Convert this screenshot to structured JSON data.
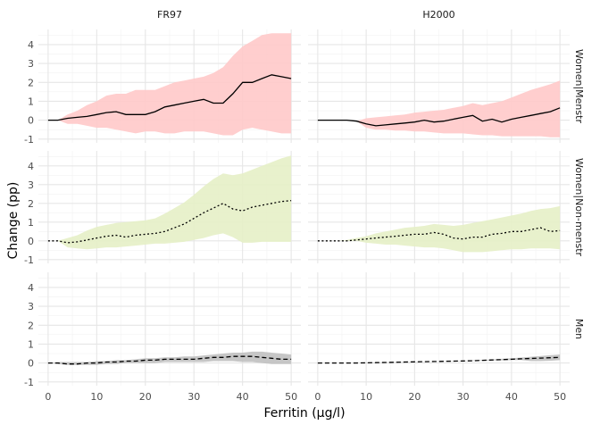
{
  "chart_data": {
    "type": "line",
    "xlabel": "Ferritin (µg/l)",
    "ylabel": "Change (pp)",
    "xlim": [
      -2,
      52
    ],
    "ylim": [
      -1.2,
      4.8
    ],
    "x_ticks": [
      0,
      10,
      20,
      30,
      40,
      50
    ],
    "y_ticks": [
      -1,
      0,
      1,
      2,
      3,
      4
    ],
    "grid": true,
    "columns": [
      "FR97",
      "H2000"
    ],
    "rows": [
      "Women|Menstr",
      "Women|Non-menstr",
      "Men"
    ],
    "row_styles": [
      {
        "dash": "none",
        "band_color": "#ffc9c9"
      },
      {
        "dash": "dotted",
        "band_color": "#e6efc6"
      },
      {
        "dash": "dashed",
        "band_color": "#c0c0c0"
      }
    ],
    "x": [
      0,
      2,
      4,
      6,
      8,
      10,
      12,
      14,
      16,
      18,
      20,
      22,
      24,
      26,
      28,
      30,
      32,
      34,
      36,
      38,
      40,
      42,
      44,
      46,
      48,
      50
    ],
    "panels": [
      {
        "column": "FR97",
        "row": "Women|Menstr",
        "x_start": 0,
        "y": [
          0,
          0,
          0.1,
          0.15,
          0.2,
          0.3,
          0.4,
          0.45,
          0.3,
          0.3,
          0.3,
          0.45,
          0.7,
          0.8,
          0.9,
          1.0,
          1.1,
          0.9,
          0.9,
          1.4,
          2.0,
          2.0,
          2.2,
          2.4,
          2.3,
          2.2
        ],
        "lower": [
          0,
          0,
          -0.2,
          -0.2,
          -0.3,
          -0.4,
          -0.4,
          -0.5,
          -0.6,
          -0.7,
          -0.6,
          -0.6,
          -0.7,
          -0.7,
          -0.6,
          -0.6,
          -0.6,
          -0.7,
          -0.8,
          -0.8,
          -0.5,
          -0.4,
          -0.5,
          -0.6,
          -0.7,
          -0.7
        ],
        "upper": [
          0,
          0,
          0.3,
          0.5,
          0.8,
          1.0,
          1.3,
          1.4,
          1.4,
          1.6,
          1.6,
          1.6,
          1.8,
          2.0,
          2.1,
          2.2,
          2.3,
          2.5,
          2.8,
          3.4,
          3.9,
          4.2,
          4.5,
          4.6,
          4.6,
          4.6
        ]
      },
      {
        "column": "H2000",
        "row": "Women|Menstr",
        "x_start": 0,
        "y": [
          0,
          0,
          0,
          0,
          -0.05,
          -0.2,
          -0.3,
          -0.25,
          -0.2,
          -0.15,
          -0.1,
          0,
          -0.1,
          -0.05,
          0.05,
          0.15,
          0.25,
          -0.05,
          0.05,
          -0.1,
          0.05,
          0.15,
          0.25,
          0.35,
          0.45,
          0.65
        ],
        "lower": [
          0,
          0,
          0,
          0,
          -0.05,
          -0.4,
          -0.5,
          -0.5,
          -0.55,
          -0.55,
          -0.6,
          -0.6,
          -0.65,
          -0.7,
          -0.7,
          -0.7,
          -0.75,
          -0.8,
          -0.8,
          -0.85,
          -0.85,
          -0.85,
          -0.85,
          -0.85,
          -0.9,
          -0.9
        ],
        "upper": [
          0,
          0,
          0,
          0,
          -0.05,
          0.1,
          0.15,
          0.2,
          0.25,
          0.3,
          0.4,
          0.45,
          0.5,
          0.55,
          0.65,
          0.75,
          0.9,
          0.8,
          0.9,
          1.0,
          1.2,
          1.4,
          1.6,
          1.75,
          1.9,
          2.1
        ]
      },
      {
        "column": "FR97",
        "row": "Women|Non-menstr",
        "x_start": 0,
        "y": [
          0,
          0,
          -0.1,
          -0.05,
          0.05,
          0.15,
          0.25,
          0.3,
          0.2,
          0.3,
          0.35,
          0.4,
          0.5,
          0.7,
          0.9,
          1.2,
          1.5,
          1.75,
          2.0,
          1.7,
          1.6,
          1.8,
          1.9,
          2.0,
          2.1,
          2.15
        ],
        "lower": [
          0,
          0,
          -0.35,
          -0.4,
          -0.45,
          -0.4,
          -0.35,
          -0.35,
          -0.3,
          -0.25,
          -0.2,
          -0.15,
          -0.15,
          -0.1,
          -0.05,
          0.05,
          0.15,
          0.3,
          0.4,
          0.2,
          -0.1,
          -0.1,
          -0.05,
          -0.05,
          -0.05,
          -0.05
        ],
        "upper": [
          0,
          0,
          0.15,
          0.3,
          0.55,
          0.75,
          0.85,
          0.95,
          1.0,
          1.05,
          1.1,
          1.2,
          1.45,
          1.75,
          2.05,
          2.45,
          2.9,
          3.3,
          3.6,
          3.5,
          3.6,
          3.8,
          4.0,
          4.2,
          4.4,
          4.55
        ]
      },
      {
        "column": "H2000",
        "row": "Women|Non-menstr",
        "x_start": 0,
        "y": [
          0,
          0,
          0,
          0,
          0.05,
          0.1,
          0.15,
          0.2,
          0.25,
          0.3,
          0.35,
          0.35,
          0.45,
          0.35,
          0.15,
          0.1,
          0.2,
          0.2,
          0.35,
          0.4,
          0.5,
          0.5,
          0.6,
          0.7,
          0.5,
          0.55
        ],
        "lower": [
          0,
          0,
          0,
          0,
          0,
          -0.1,
          -0.15,
          -0.2,
          -0.2,
          -0.25,
          -0.3,
          -0.35,
          -0.35,
          -0.4,
          -0.5,
          -0.6,
          -0.6,
          -0.6,
          -0.55,
          -0.5,
          -0.45,
          -0.45,
          -0.4,
          -0.4,
          -0.4,
          -0.45
        ],
        "upper": [
          0,
          0,
          0,
          0.05,
          0.15,
          0.25,
          0.4,
          0.5,
          0.6,
          0.7,
          0.75,
          0.8,
          0.9,
          0.85,
          0.8,
          0.85,
          0.95,
          1.05,
          1.15,
          1.25,
          1.35,
          1.45,
          1.6,
          1.7,
          1.75,
          1.85
        ]
      },
      {
        "column": "FR97",
        "row": "Men",
        "x_start": 0,
        "y": [
          0,
          0,
          -0.05,
          -0.05,
          0,
          0,
          0.05,
          0.05,
          0.1,
          0.1,
          0.15,
          0.15,
          0.2,
          0.2,
          0.2,
          0.2,
          0.25,
          0.3,
          0.3,
          0.35,
          0.35,
          0.35,
          0.3,
          0.25,
          0.2,
          0.2
        ],
        "lower": [
          0,
          -0.05,
          -0.1,
          -0.1,
          -0.1,
          -0.1,
          -0.05,
          -0.05,
          0,
          0,
          0,
          0,
          0.05,
          0.05,
          0.05,
          0.05,
          0.05,
          0.1,
          0.1,
          0.1,
          0.05,
          0.05,
          0,
          -0.05,
          -0.05,
          -0.05
        ],
        "upper": [
          0,
          0.05,
          0.05,
          0.05,
          0.05,
          0.1,
          0.1,
          0.15,
          0.15,
          0.2,
          0.25,
          0.25,
          0.3,
          0.3,
          0.35,
          0.35,
          0.4,
          0.45,
          0.5,
          0.55,
          0.55,
          0.6,
          0.6,
          0.55,
          0.5,
          0.45
        ]
      },
      {
        "column": "H2000",
        "row": "Men",
        "x_start": 0,
        "y": [
          0,
          0,
          0,
          0,
          0,
          0.01,
          0.02,
          0.03,
          0.04,
          0.05,
          0.06,
          0.07,
          0.08,
          0.09,
          0.1,
          0.11,
          0.12,
          0.14,
          0.16,
          0.18,
          0.2,
          0.22,
          0.24,
          0.26,
          0.28,
          0.3
        ],
        "lower": [
          0,
          0,
          0,
          0,
          0,
          0,
          0.01,
          0.02,
          0.03,
          0.04,
          0.05,
          0.06,
          0.07,
          0.08,
          0.09,
          0.1,
          0.11,
          0.12,
          0.13,
          0.14,
          0.15,
          0.16,
          0.1,
          0.1,
          0.12,
          0.15
        ],
        "upper": [
          0,
          0,
          0,
          0,
          0,
          0.02,
          0.03,
          0.04,
          0.05,
          0.06,
          0.07,
          0.08,
          0.09,
          0.1,
          0.11,
          0.12,
          0.14,
          0.16,
          0.19,
          0.22,
          0.25,
          0.29,
          0.33,
          0.37,
          0.41,
          0.45
        ]
      }
    ]
  }
}
